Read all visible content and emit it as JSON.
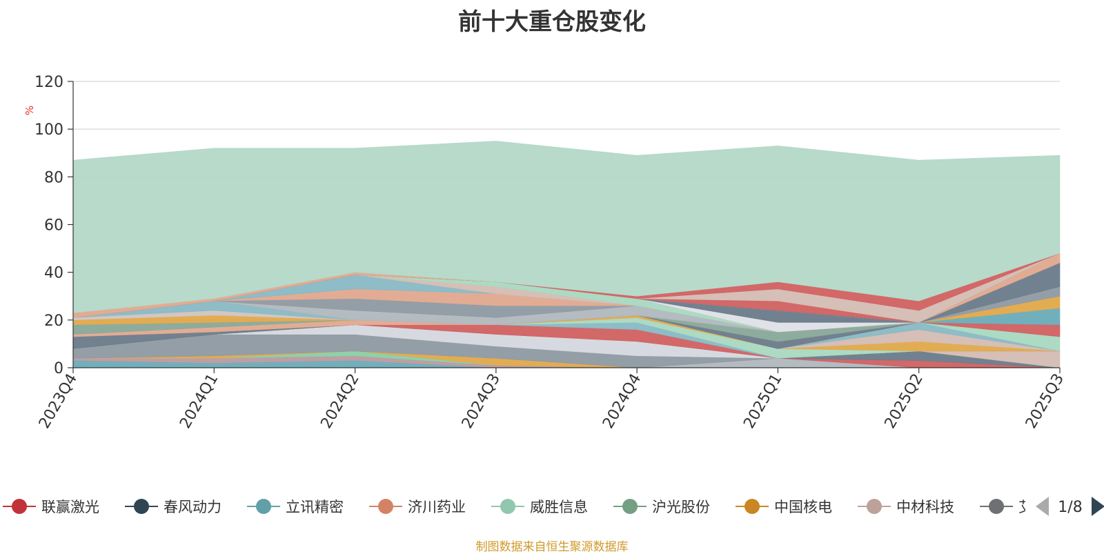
{
  "chart_data": {
    "type": "area",
    "title": "前十大重仓股变化",
    "ylabel": "%",
    "xlabel": "",
    "x": [
      "2023Q4",
      "2024Q1",
      "2024Q2",
      "2024Q3",
      "2024Q4",
      "2025Q1",
      "2025Q2",
      "2025Q3"
    ],
    "ylim": [
      0,
      120
    ],
    "yticks": [
      0,
      20,
      40,
      60,
      80,
      100,
      120
    ],
    "grid": true,
    "stacked": true,
    "series": [
      {
        "name": "",
        "color": "#6aabb8",
        "values": [
          3,
          2,
          3,
          0,
          0,
          0,
          0,
          0
        ]
      },
      {
        "name": "",
        "color": "#b89aa0",
        "values": [
          1,
          2,
          2,
          1,
          0,
          0,
          0,
          0
        ]
      },
      {
        "name": "",
        "color": "#88cfa6",
        "values": [
          0,
          0,
          2,
          0,
          0,
          0,
          0,
          0
        ]
      },
      {
        "name": "",
        "color": "#e0a84a",
        "values": [
          0,
          1,
          0,
          3,
          0,
          0,
          0,
          0
        ]
      },
      {
        "name": "",
        "color": "#b0b7be",
        "values": [
          0,
          0,
          0,
          0,
          0,
          4,
          0,
          0
        ]
      },
      {
        "name": "",
        "color": "#d06060",
        "values": [
          0,
          0,
          0,
          0,
          0,
          0,
          3,
          0
        ]
      },
      {
        "name": "",
        "color": "#6a7a8a",
        "values": [
          0,
          0,
          0,
          0,
          0,
          0,
          4,
          0
        ]
      },
      {
        "name": "",
        "color": "#d4bcb2",
        "values": [
          0,
          0,
          0,
          0,
          0,
          0,
          0,
          7
        ]
      },
      {
        "name": "",
        "color": "#8e99a2",
        "values": [
          4,
          9,
          7,
          5,
          5,
          0,
          0,
          0
        ]
      },
      {
        "name": "",
        "color": "#d4d8de",
        "values": [
          0,
          0,
          4,
          5,
          6,
          0,
          0,
          0
        ]
      },
      {
        "name": "",
        "color": "#d06060",
        "values": [
          0,
          0,
          0,
          4,
          5,
          0,
          0,
          0
        ]
      },
      {
        "name": "",
        "color": "#88b8c4",
        "values": [
          0,
          0,
          0,
          0,
          3,
          0,
          0,
          0
        ]
      },
      {
        "name": "",
        "color": "#a8d8c0",
        "values": [
          0,
          0,
          0,
          0,
          2,
          4,
          0,
          0
        ]
      },
      {
        "name": "",
        "color": "#e0a84a",
        "values": [
          0,
          0,
          0,
          0,
          1,
          0,
          4,
          0
        ]
      },
      {
        "name": "",
        "color": "#d4bcb2",
        "values": [
          0,
          0,
          0,
          0,
          0,
          0,
          5,
          0
        ]
      },
      {
        "name": "",
        "color": "#88b8c4",
        "values": [
          0,
          0,
          0,
          0,
          0,
          0,
          3,
          0
        ]
      },
      {
        "name": "",
        "color": "#a8d8c0",
        "values": [
          0,
          0,
          0,
          0,
          0,
          0,
          0,
          6
        ]
      },
      {
        "name": "",
        "color": "#d06060",
        "values": [
          0,
          0,
          0,
          0,
          0,
          0,
          0,
          5
        ]
      },
      {
        "name": "",
        "color": "#6aabb8",
        "values": [
          0,
          0,
          0,
          0,
          0,
          0,
          0,
          7
        ]
      },
      {
        "name": "",
        "color": "#e0a84a",
        "values": [
          0,
          0,
          0,
          0,
          0,
          0,
          0,
          5
        ]
      },
      {
        "name": "",
        "color": "#8e99a2",
        "values": [
          0,
          0,
          0,
          0,
          0,
          0,
          0,
          4
        ]
      },
      {
        "name": "",
        "color": "#6a7a8a",
        "values": [
          5,
          1,
          0,
          0,
          0,
          3,
          0,
          10
        ]
      },
      {
        "name": "",
        "color": "#e0a88e",
        "values": [
          1,
          2,
          2,
          0,
          0,
          0,
          0,
          4
        ]
      },
      {
        "name": "",
        "color": "#88a898",
        "values": [
          4,
          2,
          0,
          0,
          0,
          4,
          0,
          0
        ]
      },
      {
        "name": "",
        "color": "#e0a84a",
        "values": [
          2,
          3,
          0,
          0,
          0,
          0,
          0,
          0
        ]
      },
      {
        "name": "",
        "color": "#d0c4c0",
        "values": [
          1,
          2,
          0,
          0,
          0,
          0,
          0,
          0
        ]
      },
      {
        "name": "",
        "color": "#88b8c4",
        "values": [
          0,
          4,
          0,
          0,
          0,
          0,
          0,
          0
        ]
      },
      {
        "name": "",
        "color": "#b0b7be",
        "values": [
          0,
          0,
          4,
          3,
          4,
          0,
          0,
          0
        ]
      },
      {
        "name": "",
        "color": "#8e99a2",
        "values": [
          0,
          0,
          5,
          5,
          0,
          0,
          0,
          0
        ]
      },
      {
        "name": "",
        "color": "#e0a88e",
        "values": [
          0,
          0,
          4,
          5,
          0,
          0,
          0,
          0
        ]
      },
      {
        "name": "",
        "color": "#88b8c4",
        "values": [
          0,
          0,
          6,
          0,
          0,
          0,
          0,
          0
        ]
      },
      {
        "name": "",
        "color": "#d4bcb2",
        "values": [
          0,
          0,
          0,
          3,
          0,
          0,
          0,
          0
        ]
      },
      {
        "name": "",
        "color": "#a8d8c0",
        "values": [
          0,
          0,
          0,
          2,
          3,
          0,
          0,
          0
        ]
      },
      {
        "name": "",
        "color": "#d06060",
        "values": [
          0,
          0,
          0,
          0,
          0,
          0,
          0,
          0
        ]
      },
      {
        "name": "",
        "color": "#dde0e6",
        "values": [
          0,
          0,
          0,
          0,
          0,
          4,
          0,
          0
        ]
      },
      {
        "name": "",
        "color": "#6a7a8a",
        "values": [
          0,
          0,
          0,
          0,
          0,
          5,
          0,
          0
        ]
      },
      {
        "name": "",
        "color": "#a8d8c0",
        "values": [
          0,
          0,
          0,
          0,
          0,
          0,
          0,
          0
        ]
      },
      {
        "name": "",
        "color": "#d06060",
        "values": [
          0,
          0,
          0,
          0,
          0,
          4,
          0,
          0
        ]
      },
      {
        "name": "",
        "color": "#d4bcb2",
        "values": [
          0,
          0,
          0,
          0,
          0,
          5,
          5,
          0
        ]
      },
      {
        "name": "",
        "color": "#d06060",
        "values": [
          0,
          0,
          0,
          0,
          1,
          3,
          4,
          0
        ]
      },
      {
        "name": "",
        "color": "#e0a88e",
        "values": [
          2,
          1,
          1,
          0,
          0,
          0,
          0,
          0
        ]
      },
      {
        "name": "",
        "color": "#b3d8c7",
        "values": [
          64,
          63,
          52,
          59,
          59,
          57,
          59,
          41
        ]
      }
    ],
    "legend": {
      "items": [
        {
          "name": "联赢激光",
          "color": "#c0333a"
        },
        {
          "name": "春风动力",
          "color": "#2f4554"
        },
        {
          "name": "立讯精密",
          "color": "#61a0a8"
        },
        {
          "name": "济川药业",
          "color": "#d48265"
        },
        {
          "name": "威胜信息",
          "color": "#91c7ae"
        },
        {
          "name": "沪光股份",
          "color": "#749f83"
        },
        {
          "name": "中国核电",
          "color": "#ca8622"
        },
        {
          "name": "中材科技",
          "color": "#bda29a"
        },
        {
          "name": "艾",
          "color": "#6e7074"
        }
      ],
      "page": "1/8",
      "position": "bottom"
    },
    "source": "制图数据来自恒生聚源数据库"
  }
}
